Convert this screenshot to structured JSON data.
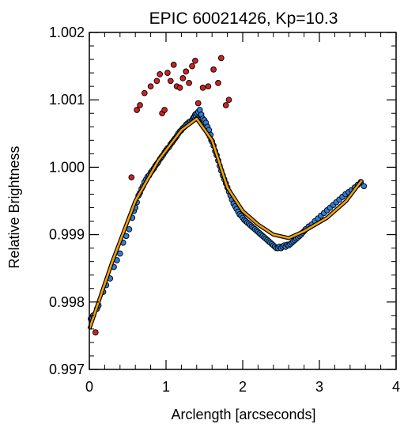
{
  "chart_data": {
    "type": "scatter",
    "title": "EPIC 60021426, Kp=10.3",
    "xlabel": "Arclength [arcseconds]",
    "ylabel": "Relative Brightness",
    "xlim": [
      0,
      4
    ],
    "ylim": [
      0.997,
      1.002
    ],
    "x_ticks": [
      0,
      1,
      2,
      3,
      4
    ],
    "x_tick_labels": [
      "0",
      "1",
      "2",
      "3",
      "4"
    ],
    "y_ticks": [
      0.997,
      0.998,
      0.999,
      1.0,
      1.001,
      1.002
    ],
    "y_tick_labels": [
      "0.997",
      "0.998",
      "0.999",
      "1.000",
      "1.001",
      "1.002"
    ],
    "grid": false,
    "legend": "none",
    "series": [
      {
        "kind": "points",
        "color": "#2f7fd6",
        "points": [
          [
            0.02,
            0.99775
          ],
          [
            0.05,
            0.9978
          ],
          [
            0.1,
            0.9979
          ],
          [
            0.12,
            0.99795
          ],
          [
            0.18,
            0.99815
          ],
          [
            0.22,
            0.99825
          ],
          [
            0.27,
            0.99835
          ],
          [
            0.32,
            0.99852
          ],
          [
            0.36,
            0.99862
          ],
          [
            0.4,
            0.99872
          ],
          [
            0.44,
            0.99888
          ],
          [
            0.48,
            0.99898
          ],
          [
            0.52,
            0.99908
          ],
          [
            0.56,
            0.99925
          ],
          [
            0.58,
            0.99935
          ],
          [
            0.6,
            0.9994
          ],
          [
            0.62,
            0.99948
          ],
          [
            0.64,
            0.99958
          ],
          [
            0.66,
            0.99962
          ],
          [
            0.68,
            0.99968
          ],
          [
            0.7,
            0.99972
          ],
          [
            0.72,
            0.99978
          ],
          [
            0.74,
            0.99982
          ],
          [
            0.76,
            0.99986
          ],
          [
            0.78,
            0.99988
          ],
          [
            0.8,
            0.99992
          ],
          [
            0.82,
            0.99995
          ],
          [
            0.84,
            0.99998
          ],
          [
            0.86,
            1.00002
          ],
          [
            0.88,
            1.00005
          ],
          [
            0.9,
            1.00008
          ],
          [
            0.92,
            1.00012
          ],
          [
            0.94,
            1.00015
          ],
          [
            0.96,
            1.00018
          ],
          [
            0.98,
            1.00022
          ],
          [
            1.0,
            1.00025
          ],
          [
            1.02,
            1.00028
          ],
          [
            1.04,
            1.0003
          ],
          [
            1.06,
            1.00034
          ],
          [
            1.08,
            1.00037
          ],
          [
            1.1,
            1.0004
          ],
          [
            1.12,
            1.00043
          ],
          [
            1.14,
            1.00046
          ],
          [
            1.16,
            1.0005
          ],
          [
            1.18,
            1.00053
          ],
          [
            1.2,
            1.00055
          ],
          [
            1.22,
            1.00058
          ],
          [
            1.24,
            1.0006
          ],
          [
            1.26,
            1.00063
          ],
          [
            1.28,
            1.00065
          ],
          [
            1.3,
            1.00067
          ],
          [
            1.32,
            1.00068
          ],
          [
            1.34,
            1.0007
          ],
          [
            1.35,
            1.00072
          ],
          [
            1.36,
            1.00074
          ],
          [
            1.37,
            1.00075
          ],
          [
            1.38,
            1.00078
          ],
          [
            1.39,
            1.00076
          ],
          [
            1.4,
            1.0008
          ],
          [
            1.41,
            1.00072
          ],
          [
            1.42,
            1.00082
          ],
          [
            1.43,
            1.0007
          ],
          [
            1.44,
            1.00085
          ],
          [
            1.45,
            1.00068
          ],
          [
            1.46,
            1.00078
          ],
          [
            1.47,
            1.00066
          ],
          [
            1.48,
            1.00072
          ],
          [
            1.49,
            1.00064
          ],
          [
            1.5,
            1.0007
          ],
          [
            1.51,
            1.0006
          ],
          [
            1.52,
            1.00066
          ],
          [
            1.53,
            1.00056
          ],
          [
            1.54,
            1.0006
          ],
          [
            1.55,
            1.0005
          ],
          [
            1.56,
            1.00055
          ],
          [
            1.57,
            1.00046
          ],
          [
            1.58,
            1.00048
          ],
          [
            1.59,
            1.0004
          ],
          [
            1.6,
            1.00038
          ],
          [
            1.62,
            1.00032
          ],
          [
            1.64,
            1.00024
          ],
          [
            1.66,
            1.00018
          ],
          [
            1.68,
            1.0001
          ],
          [
            1.7,
            1.00002
          ],
          [
            1.72,
            0.99995
          ],
          [
            1.74,
            0.99988
          ],
          [
            1.76,
            0.99982
          ],
          [
            1.78,
            0.99976
          ],
          [
            1.8,
            0.9997
          ],
          [
            1.82,
            0.99964
          ],
          [
            1.84,
            0.99958
          ],
          [
            1.86,
            0.99952
          ],
          [
            1.88,
            0.99946
          ],
          [
            1.9,
            0.99942
          ],
          [
            1.92,
            0.99938
          ],
          [
            1.94,
            0.99934
          ],
          [
            1.96,
            0.9993
          ],
          [
            1.98,
            0.99928
          ],
          [
            2.0,
            0.99925
          ],
          [
            2.02,
            0.99922
          ],
          [
            2.04,
            0.9992
          ],
          [
            2.06,
            0.99918
          ],
          [
            2.08,
            0.99916
          ],
          [
            2.1,
            0.99914
          ],
          [
            2.12,
            0.99912
          ],
          [
            2.14,
            0.9991
          ],
          [
            2.16,
            0.99908
          ],
          [
            2.18,
            0.99906
          ],
          [
            2.2,
            0.99904
          ],
          [
            2.22,
            0.99902
          ],
          [
            2.24,
            0.999
          ],
          [
            2.26,
            0.99898
          ],
          [
            2.28,
            0.99896
          ],
          [
            2.3,
            0.99894
          ],
          [
            2.32,
            0.99892
          ],
          [
            2.34,
            0.9989
          ],
          [
            2.36,
            0.99888
          ],
          [
            2.38,
            0.99886
          ],
          [
            2.4,
            0.99884
          ],
          [
            2.42,
            0.99882
          ],
          [
            2.44,
            0.9988
          ],
          [
            2.46,
            0.9988
          ],
          [
            2.48,
            0.99882
          ],
          [
            2.5,
            0.9988
          ],
          [
            2.52,
            0.99882
          ],
          [
            2.54,
            0.99884
          ],
          [
            2.56,
            0.99882
          ],
          [
            2.58,
            0.99885
          ],
          [
            2.6,
            0.99884
          ],
          [
            2.62,
            0.99886
          ],
          [
            2.64,
            0.99888
          ],
          [
            2.66,
            0.9989
          ],
          [
            2.68,
            0.99892
          ],
          [
            2.7,
            0.99894
          ],
          [
            2.72,
            0.99896
          ],
          [
            2.74,
            0.99898
          ],
          [
            2.76,
            0.999
          ],
          [
            2.78,
            0.99903
          ],
          [
            2.8,
            0.99905
          ],
          [
            2.82,
            0.99908
          ],
          [
            2.86,
            0.99912
          ],
          [
            2.9,
            0.99915
          ],
          [
            2.94,
            0.9992
          ],
          [
            2.98,
            0.99924
          ],
          [
            3.02,
            0.99928
          ],
          [
            3.06,
            0.99932
          ],
          [
            3.1,
            0.99936
          ],
          [
            3.14,
            0.9994
          ],
          [
            3.18,
            0.99944
          ],
          [
            3.22,
            0.99948
          ],
          [
            3.26,
            0.99952
          ],
          [
            3.3,
            0.99956
          ],
          [
            3.34,
            0.9996
          ],
          [
            3.38,
            0.99963
          ],
          [
            3.42,
            0.99966
          ],
          [
            3.46,
            0.9997
          ],
          [
            3.5,
            0.99974
          ],
          [
            3.54,
            0.99978
          ],
          [
            3.58,
            0.99972
          ]
        ]
      },
      {
        "kind": "points",
        "color": "#cc2222",
        "points": [
          [
            0.08,
            0.99755
          ],
          [
            0.55,
            0.99985
          ],
          [
            0.62,
            1.00085
          ],
          [
            0.66,
            1.00092
          ],
          [
            0.72,
            1.0011
          ],
          [
            0.8,
            1.0012
          ],
          [
            0.88,
            1.00128
          ],
          [
            0.92,
            1.00138
          ],
          [
            0.95,
            1.0008
          ],
          [
            0.98,
            1.00085
          ],
          [
            1.02,
            1.0014
          ],
          [
            1.06,
            1.00128
          ],
          [
            1.1,
            1.00152
          ],
          [
            1.14,
            1.0012
          ],
          [
            1.18,
            1.00118
          ],
          [
            1.22,
            1.00132
          ],
          [
            1.26,
            1.00142
          ],
          [
            1.3,
            1.00125
          ],
          [
            1.34,
            1.0015
          ],
          [
            1.38,
            1.00158
          ],
          [
            1.42,
            1.00095
          ],
          [
            1.48,
            1.00118
          ],
          [
            1.55,
            1.0012
          ],
          [
            1.62,
            1.00145
          ],
          [
            1.68,
            1.00125
          ],
          [
            1.72,
            1.00162
          ],
          [
            1.78,
            1.00092
          ],
          [
            1.82,
            1.001
          ]
        ]
      },
      {
        "kind": "line",
        "color": "#f5a000",
        "points": [
          [
            0.0,
            0.9976
          ],
          [
            0.3,
            0.9986
          ],
          [
            0.6,
            0.9995
          ],
          [
            0.9,
            1.0001
          ],
          [
            1.2,
            1.00055
          ],
          [
            1.4,
            1.00072
          ],
          [
            1.6,
            1.0004
          ],
          [
            1.8,
            0.9997
          ],
          [
            2.0,
            0.99935
          ],
          [
            2.2,
            0.99915
          ],
          [
            2.4,
            0.999
          ],
          [
            2.6,
            0.99895
          ],
          [
            2.8,
            0.99905
          ],
          [
            3.1,
            0.99925
          ],
          [
            3.35,
            0.9995
          ],
          [
            3.55,
            0.9998
          ]
        ]
      }
    ]
  }
}
